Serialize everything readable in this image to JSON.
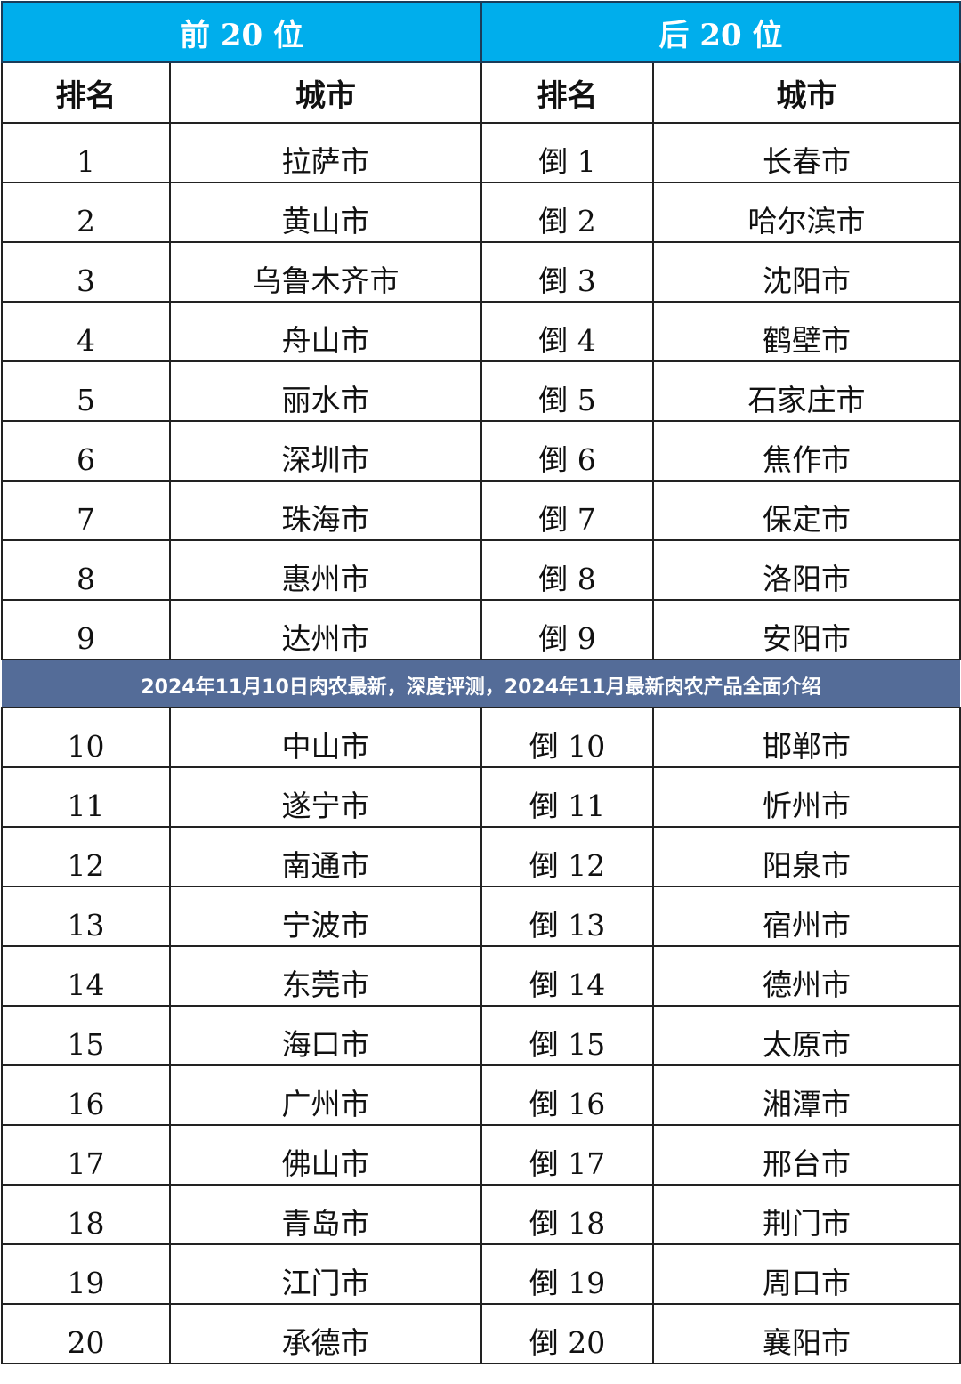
{
  "header": {
    "top_group": "前 20 位",
    "bottom_group": "后 20 位"
  },
  "columns": {
    "rank": "排名",
    "city": "城市"
  },
  "top_rows": [
    [
      "1",
      "拉萨市"
    ],
    [
      "2",
      "黄山市"
    ],
    [
      "3",
      "乌鲁木齐市"
    ],
    [
      "4",
      "舟山市"
    ],
    [
      "5",
      "丽水市"
    ],
    [
      "6",
      "深圳市"
    ],
    [
      "7",
      "珠海市"
    ],
    [
      "8",
      "惠州市"
    ],
    [
      "9",
      "达州市"
    ],
    [
      "10",
      "中山市"
    ],
    [
      "11",
      "遂宁市"
    ],
    [
      "12",
      "南通市"
    ],
    [
      "13",
      "宁波市"
    ],
    [
      "14",
      "东莞市"
    ],
    [
      "15",
      "海口市"
    ],
    [
      "16",
      "广州市"
    ],
    [
      "17",
      "佛山市"
    ],
    [
      "18",
      "青岛市"
    ],
    [
      "19",
      "江门市"
    ],
    [
      "20",
      "承德市"
    ]
  ],
  "bottom_rows": [
    [
      "倒 1",
      "长春市"
    ],
    [
      "倒 2",
      "哈尔滨市"
    ],
    [
      "倒 3",
      "沈阳市"
    ],
    [
      "倒 4",
      "鹤壁市"
    ],
    [
      "倒 5",
      "石家庄市"
    ],
    [
      "倒 6",
      "焦作市"
    ],
    [
      "倒 7",
      "保定市"
    ],
    [
      "倒 8",
      "洛阳市"
    ],
    [
      "倒 9",
      "安阳市"
    ],
    [
      "倒 10",
      "邯郸市"
    ],
    [
      "倒 11",
      "忻州市"
    ],
    [
      "倒 12",
      "阳泉市"
    ],
    [
      "倒 13",
      "宿州市"
    ],
    [
      "倒 14",
      "德州市"
    ],
    [
      "倒 15",
      "太原市"
    ],
    [
      "倒 16",
      "湘潭市"
    ],
    [
      "倒 17",
      "邢台市"
    ],
    [
      "倒 18",
      "荆门市"
    ],
    [
      "倒 19",
      "周口市"
    ],
    [
      "倒 20",
      "襄阳市"
    ]
  ],
  "banner": {
    "title": "2024年11月10日肉农最新，深度评测，2024年11月最新肉农产品全面介绍"
  },
  "colors": {
    "header_bg": "#00aeec",
    "banner_bg": "#546c98"
  }
}
